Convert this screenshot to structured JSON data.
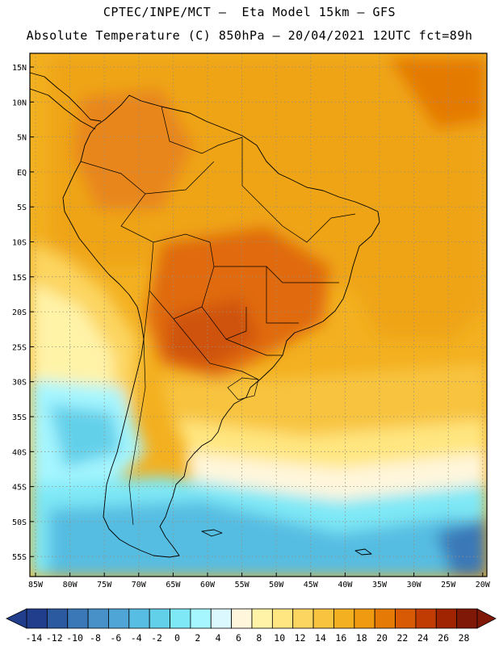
{
  "header": {
    "line1": "CPTEC/INPE/MCT –  Eta Model 15km – GFS",
    "line2": "Absolute Temperature (C) 850hPa – 20/04/2021 12UTC fct=89h"
  },
  "map": {
    "region": "South America",
    "lat_labels": [
      "15N",
      "10N",
      "5N",
      "EQ",
      "5S",
      "10S",
      "15S",
      "20S",
      "25S",
      "30S",
      "35S",
      "40S",
      "45S",
      "50S",
      "55S"
    ],
    "lon_labels": [
      "85W",
      "80W",
      "75W",
      "70W",
      "65W",
      "60W",
      "55W",
      "50W",
      "45W",
      "40W",
      "35W",
      "30W",
      "25W",
      "20W"
    ]
  },
  "colorbar": {
    "labels": [
      "-14",
      "-12",
      "-10",
      "-8",
      "-6",
      "-4",
      "-2",
      "0",
      "2",
      "4",
      "6",
      "8",
      "10",
      "12",
      "14",
      "16",
      "18",
      "20",
      "22",
      "24",
      "26",
      "28"
    ],
    "colors": [
      "#213e8c",
      "#2c5aa0",
      "#3a78b8",
      "#4791c8",
      "#4fa6d6",
      "#57bde2",
      "#63d0ea",
      "#7ee8f6",
      "#a6f6ff",
      "#dcf8ff",
      "#fff6dc",
      "#fff3a8",
      "#ffe680",
      "#fcd560",
      "#f8c440",
      "#f3b020",
      "#ef9a10",
      "#e57a06",
      "#d85a04",
      "#c03c02",
      "#a02402",
      "#801808"
    ]
  }
}
